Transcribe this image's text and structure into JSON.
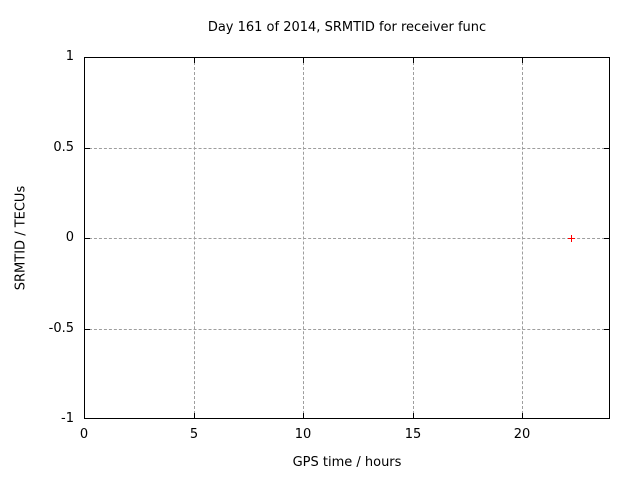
{
  "chart_data": {
    "type": "scatter",
    "title": "Day 161 of 2014, SRMTID for receiver func",
    "xlabel": "GPS time / hours",
    "ylabel": "SRMTID / TECUs",
    "xlim": [
      0,
      24
    ],
    "ylim": [
      -1,
      1
    ],
    "xticks": [
      0,
      5,
      10,
      15,
      20
    ],
    "yticks": [
      -1,
      -0.5,
      0,
      0.5,
      1
    ],
    "grid": true,
    "legend_position": "none",
    "series": [
      {
        "marker": "plus",
        "color": "#ff0000",
        "points": [
          [
            22.2,
            0
          ]
        ]
      }
    ]
  },
  "colors": {
    "background": "#ffffff",
    "axis": "#000000",
    "grid": "#9e9e9e",
    "point": "#ff0000"
  }
}
